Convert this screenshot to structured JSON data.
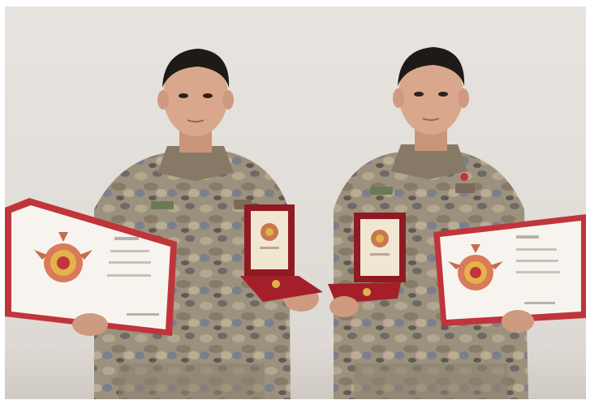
{
  "image": {
    "alt": "",
    "colors": {
      "wall": "#e4e0dc",
      "camo_base": "#9c8f7a",
      "certificate_border": "#c0343c",
      "certificate_paper": "#f7f4ef",
      "medal_box": "#8f1a22",
      "skin": "#d9a88c",
      "hair": "#1e1a17"
    },
    "subjects": [
      {
        "name": "left-soldier",
        "holding": [
          "certificate",
          "medal-box"
        ]
      },
      {
        "name": "right-soldier",
        "holding": [
          "medal-box",
          "certificate"
        ]
      }
    ]
  }
}
